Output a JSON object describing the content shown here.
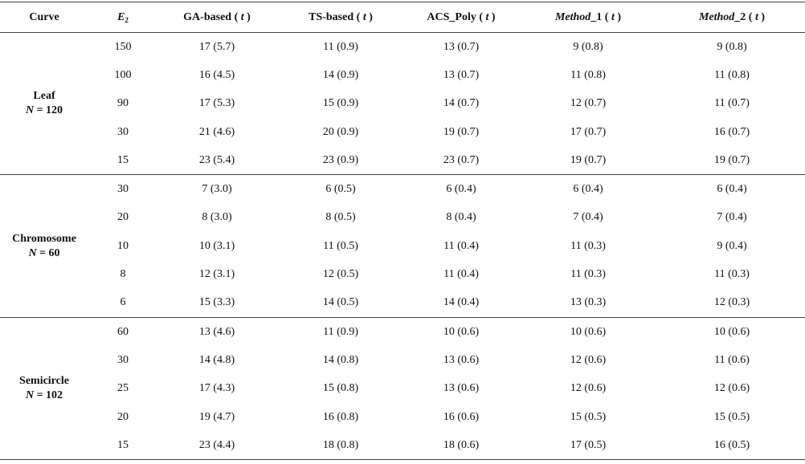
{
  "header": {
    "curve": "Curve",
    "e_symbol": "E",
    "e_sub": "2",
    "cols": [
      {
        "main": "GA-based",
        "main_italic": false,
        "t": "t"
      },
      {
        "main": "TS-based",
        "main_italic": false,
        "t": "t"
      },
      {
        "main": "ACS_Poly",
        "main_italic": false,
        "t": "t"
      },
      {
        "main": "Method",
        "main_italic": true,
        "suffix": "_1",
        "t": "t"
      },
      {
        "main": "Method",
        "main_italic": true,
        "suffix": "_2",
        "t": "t"
      }
    ]
  },
  "groups": [
    {
      "name": "Leaf",
      "n_label": "N",
      "n_value": "= 120",
      "rows": [
        {
          "e2": "150",
          "cells": [
            "17 (5.7)",
            "11 (0.9)",
            "13 (0.7)",
            "9 (0.8)",
            "9 (0.8)"
          ]
        },
        {
          "e2": "100",
          "cells": [
            "16 (4.5)",
            "14 (0.9)",
            "13 (0.7)",
            "11 (0.8)",
            "11 (0.8)"
          ]
        },
        {
          "e2": "90",
          "cells": [
            "17 (5.3)",
            "15 (0.9)",
            "14 (0.7)",
            "12 (0.7)",
            "11 (0.7)"
          ]
        },
        {
          "e2": "30",
          "cells": [
            "21 (4.6)",
            "20 (0.9)",
            "19 (0.7)",
            "17 (0.7)",
            "16 (0.7)"
          ]
        },
        {
          "e2": "15",
          "cells": [
            "23 (5.4)",
            "23 (0.9)",
            "23 (0.7)",
            "19 (0.7)",
            "19 (0.7)"
          ]
        }
      ]
    },
    {
      "name": "Chromosome",
      "n_label": "N",
      "n_value": "= 60",
      "rows": [
        {
          "e2": "30",
          "cells": [
            "7 (3.0)",
            "6 (0.5)",
            "6 (0.4)",
            "6 (0.4)",
            "6 (0.4)"
          ]
        },
        {
          "e2": "20",
          "cells": [
            "8 (3.0)",
            "8 (0.5)",
            "8 (0.4)",
            "7 (0.4)",
            "7 (0.4)"
          ]
        },
        {
          "e2": "10",
          "cells": [
            "10 (3.1)",
            "11 (0.5)",
            "11 (0.4)",
            "11 (0.3)",
            "9 (0.4)"
          ]
        },
        {
          "e2": "8",
          "cells": [
            "12 (3.1)",
            "12 (0.5)",
            "11 (0.4)",
            "11 (0.3)",
            "11 (0.3)"
          ]
        },
        {
          "e2": "6",
          "cells": [
            "15 (3.3)",
            "14 (0.5)",
            "14 (0.4)",
            "13 (0.3)",
            "12 (0.3)"
          ]
        }
      ]
    },
    {
      "name": "Semicircle",
      "n_label": "N",
      "n_value": "= 102",
      "rows": [
        {
          "e2": "60",
          "cells": [
            "13 (4.6)",
            "11 (0.9)",
            "10 (0.6)",
            "10 (0.6)",
            "10 (0.6)"
          ]
        },
        {
          "e2": "30",
          "cells": [
            "14 (4.8)",
            "14 (0.8)",
            "13 (0.6)",
            "12 (0.6)",
            "11 (0.6)"
          ]
        },
        {
          "e2": "25",
          "cells": [
            "17 (4.3)",
            "15 (0.8)",
            "13 (0.6)",
            "12 (0.6)",
            "12 (0.6)"
          ]
        },
        {
          "e2": "20",
          "cells": [
            "19 (4.7)",
            "16 (0.8)",
            "16 (0.6)",
            "15 (0.5)",
            "15 (0.5)"
          ]
        },
        {
          "e2": "15",
          "cells": [
            "23 (4.4)",
            "18 (0.8)",
            "18 (0.6)",
            "17 (0.5)",
            "16 (0.5)"
          ]
        }
      ]
    }
  ]
}
